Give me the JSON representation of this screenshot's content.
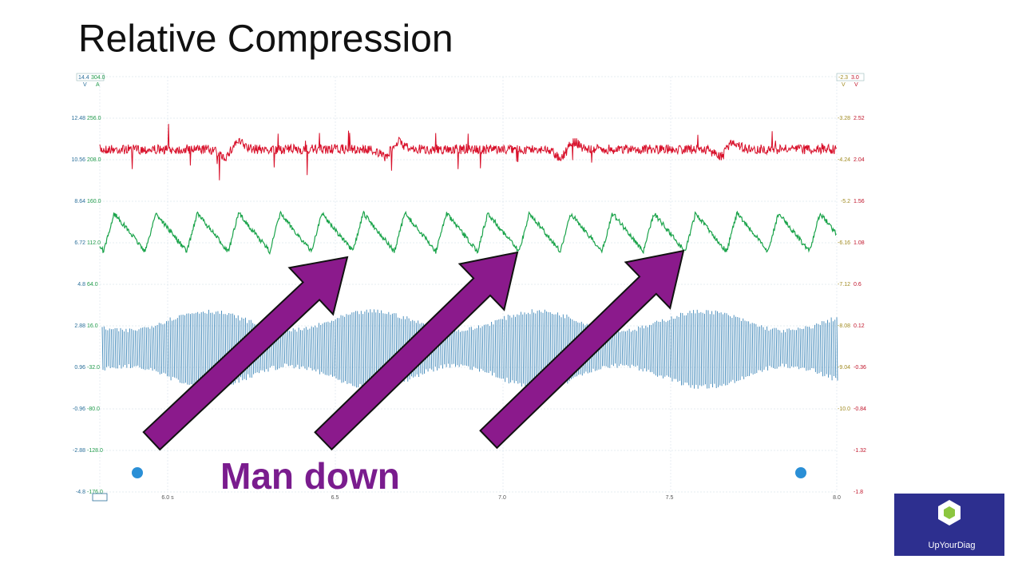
{
  "slide": {
    "title": "Relative Compression",
    "annotation": "Man down",
    "logo_text": "UpYourDiag"
  },
  "scope": {
    "top_left": {
      "values": [
        "14.4",
        "304.0"
      ],
      "units": [
        "V",
        "A"
      ]
    },
    "top_right": {
      "values": [
        "-2.3",
        "3.0"
      ],
      "units": [
        "V",
        "V"
      ]
    },
    "left_axis": [
      [
        "12.48",
        "256.0"
      ],
      [
        "10.56",
        "208.0"
      ],
      [
        "8.64",
        "160.0"
      ],
      [
        "6.72",
        "112.0"
      ],
      [
        "4.8",
        "64.0"
      ],
      [
        "2.88",
        "16.0"
      ],
      [
        "0.96",
        "-32.0"
      ],
      [
        "-0.96",
        "-80.0"
      ],
      [
        "-2.88",
        "-128.0"
      ],
      [
        "-4.8",
        "-176.0"
      ]
    ],
    "right_axis": [
      [
        "-3.28",
        "2.52"
      ],
      [
        "-4.24",
        "2.04"
      ],
      [
        "-5.2",
        "1.56"
      ],
      [
        "-6.16",
        "1.08"
      ],
      [
        "-7.12",
        "0.6"
      ],
      [
        "-8.08",
        "0.12"
      ],
      [
        "-9.04",
        "-0.36"
      ],
      [
        "-10.0",
        "-0.84"
      ],
      [
        "",
        "-1.32"
      ],
      [
        "",
        "-1.8"
      ]
    ],
    "x_labels": [
      "6.0 s",
      "6.5",
      "7.0",
      "7.5",
      "8.0"
    ]
  }
}
